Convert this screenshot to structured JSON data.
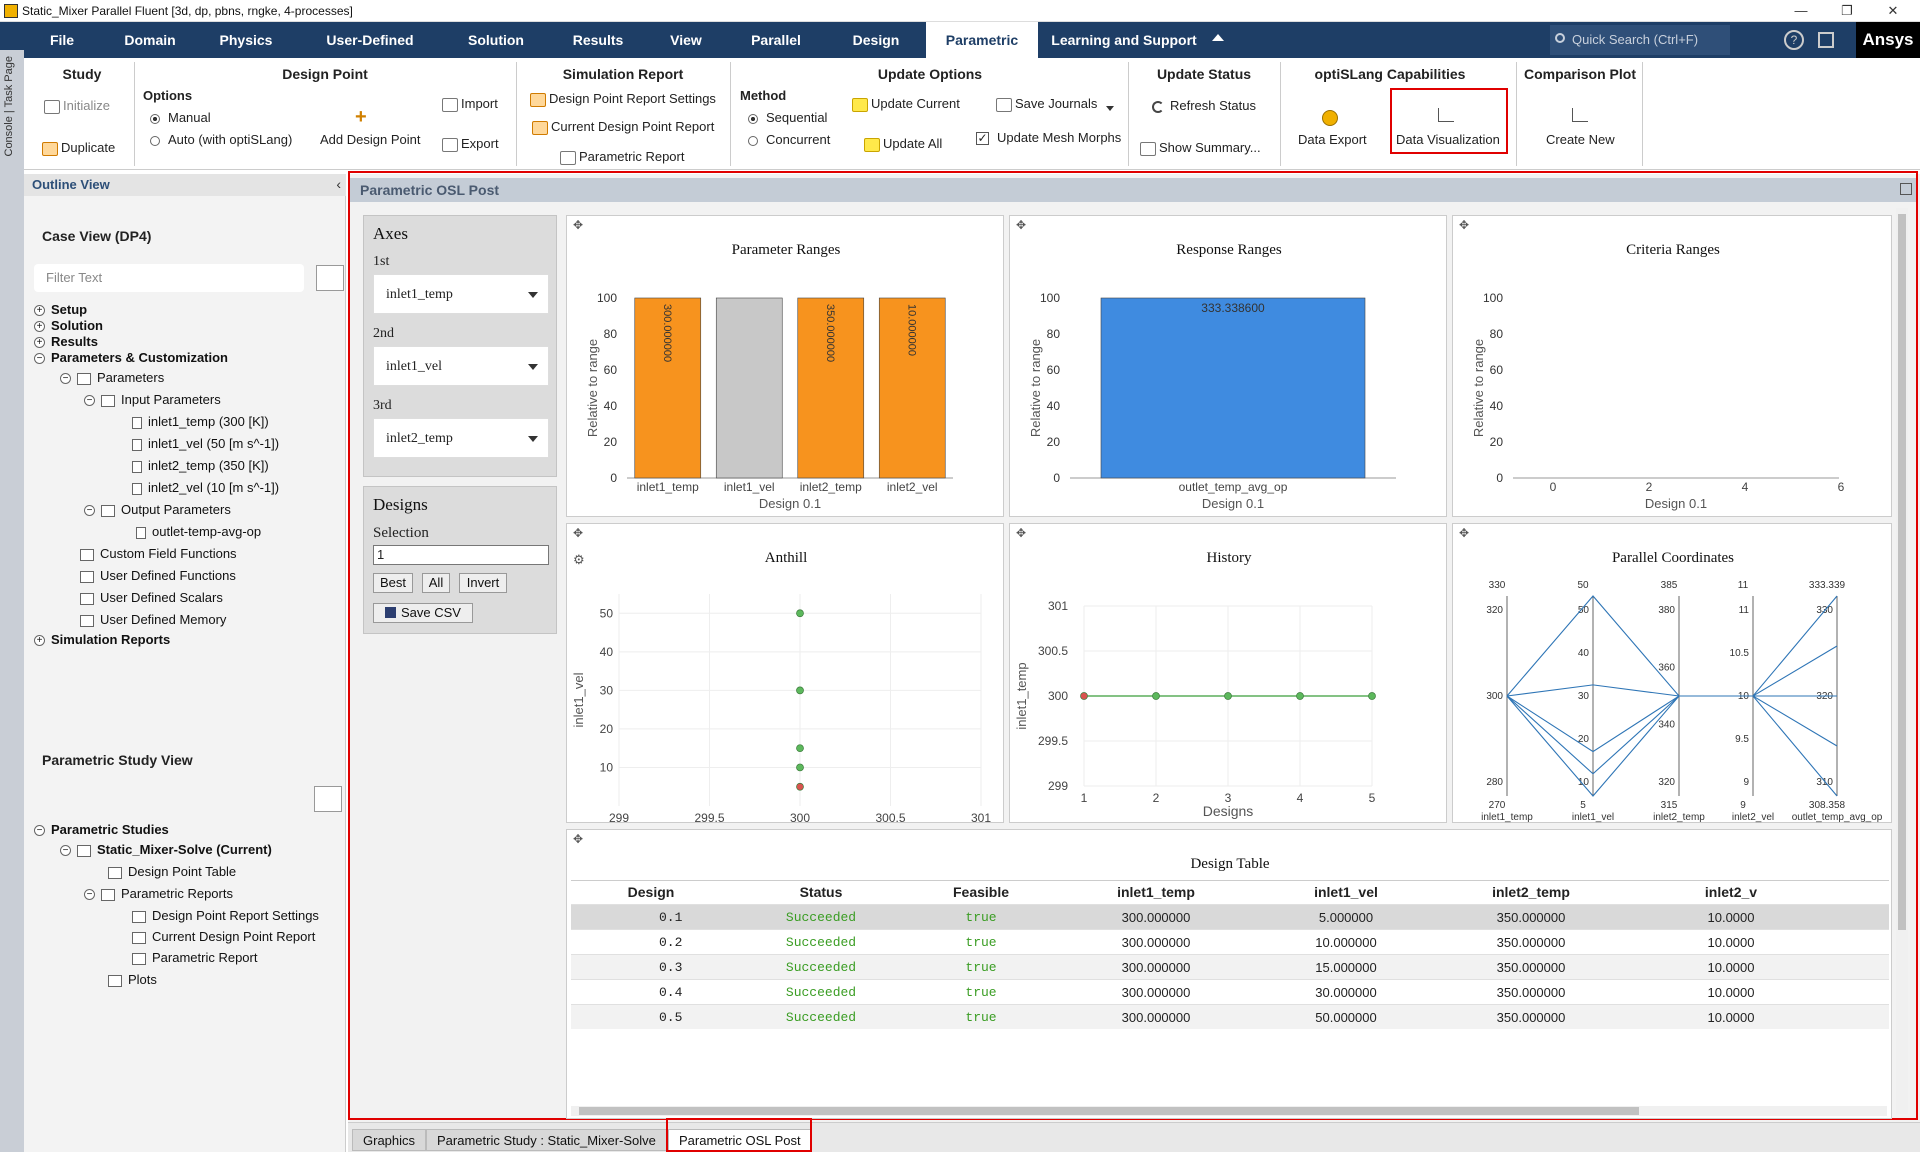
{
  "window": {
    "title": "Static_Mixer Parallel Fluent  [3d, dp, pbns, rngke, 4-processes]",
    "min": "—",
    "max": "❐",
    "close": "✕"
  },
  "menu": [
    "File",
    "Domain",
    "Physics",
    "User-Defined",
    "Solution",
    "Results",
    "View",
    "Parallel",
    "Design",
    "Parametric",
    "Learning and Support"
  ],
  "menu_active": "Parametric",
  "search_placeholder": "Quick Search (Ctrl+F)",
  "brand": "Ansys",
  "ribbon": {
    "study": {
      "title": "Study",
      "initialize": "Initialize",
      "duplicate": "Duplicate"
    },
    "design_point": {
      "title": "Design Point",
      "options": "Options",
      "manual": "Manual",
      "auto": "Auto (with optiSLang)",
      "add": "Add Design Point",
      "import": "Import",
      "export": "Export"
    },
    "sim_report": {
      "title": "Simulation Report",
      "dp_settings": "Design Point Report Settings",
      "current": "Current Design Point Report",
      "param": "Parametric Report"
    },
    "update": {
      "title": "Update Options",
      "method": "Method",
      "sequential": "Sequential",
      "concurrent": "Concurrent",
      "update_current": "Update Current",
      "update_all": "Update All",
      "save_journals": "Save Journals",
      "mesh": "Update Mesh Morphs"
    },
    "status": {
      "title": "Update Status",
      "refresh": "Refresh Status",
      "summary": "Show Summary..."
    },
    "optislang": {
      "title": "optiSLang Capabilities",
      "export": "Data Export",
      "viz": "Data Visualization"
    },
    "compare": {
      "title": "Comparison Plot",
      "create": "Create New"
    }
  },
  "left_strip": "Console | Task Page",
  "outline": {
    "title": "Outline View",
    "case": "Case View (DP4)",
    "filter": "Filter Text",
    "items": {
      "setup": "Setup",
      "solution": "Solution",
      "results": "Results",
      "pc": "Parameters & Customization",
      "params": "Parameters",
      "inparams": "Input Parameters",
      "p1": "inlet1_temp (300 [K])",
      "p2": "inlet1_vel (50 [m s^-1])",
      "p3": "inlet2_temp (350 [K])",
      "p4": "inlet2_vel (10 [m s^-1])",
      "outparams": "Output Parameters",
      "o1": "outlet-temp-avg-op",
      "cff": "Custom Field Functions",
      "udf": "User Defined Functions",
      "uds": "User Defined Scalars",
      "udm": "User Defined Memory",
      "simrep": "Simulation Reports"
    }
  },
  "study_view": {
    "title": "Parametric Study View",
    "studies": "Parametric Studies",
    "current": "Static_Mixer-Solve (Current)",
    "dpt": "Design Point Table",
    "preps": "Parametric Reports",
    "dprs": "Design Point Report Settings",
    "cdpr": "Current Design Point Report",
    "pr": "Parametric Report",
    "plots": "Plots"
  },
  "panel_title": "Parametric OSL Post",
  "axes": {
    "title": "Axes",
    "first": "1st",
    "second": "2nd",
    "third": "3rd",
    "v1": "inlet1_temp",
    "v2": "inlet1_vel",
    "v3": "inlet2_temp"
  },
  "designs": {
    "title": "Designs",
    "selection": "Selection",
    "value": "1",
    "best": "Best",
    "all": "All",
    "invert": "Invert",
    "save": "Save CSV"
  },
  "charts": {
    "param_ranges": {
      "title": "Parameter Ranges",
      "xlabel": "Design 0.1",
      "ylabel": "Relative to range",
      "categories": [
        "inlet1_temp",
        "inlet1_vel",
        "inlet2_temp",
        "inlet2_vel"
      ],
      "values": [
        100,
        100,
        100,
        100
      ],
      "labels": [
        "300.000000",
        "",
        "350.000000",
        "10.000000"
      ],
      "colors": [
        "#f7931e",
        "#c8c8c8",
        "#f7931e",
        "#f7931e"
      ],
      "yticks": [
        0,
        20,
        40,
        60,
        80,
        100
      ]
    },
    "resp_ranges": {
      "title": "Response Ranges",
      "xlabel": "Design 0.1",
      "ylabel": "Relative to range",
      "categories": [
        "outlet_temp_avg_op"
      ],
      "values": [
        100
      ],
      "labels": [
        "333.338600"
      ],
      "color": "#3f8be0",
      "yticks": [
        0,
        20,
        40,
        60,
        80,
        100
      ]
    },
    "crit_ranges": {
      "title": "Criteria Ranges",
      "xlabel": "Design 0.1",
      "ylabel": "Relative to range",
      "xticks": [
        "0",
        "2",
        "4",
        "6"
      ],
      "yticks": [
        0,
        20,
        40,
        60,
        80,
        100
      ]
    },
    "anthill": {
      "title": "Anthill",
      "xlabel": "inlet1_temp",
      "ylabel": "inlet1_vel",
      "xticks": [
        "299",
        "299.5",
        "300",
        "300.5",
        "301"
      ],
      "yticks": [
        "10",
        "20",
        "30",
        "40",
        "50"
      ],
      "points": [
        {
          "x": 300,
          "y": 5,
          "best": true
        },
        {
          "x": 300,
          "y": 10
        },
        {
          "x": 300,
          "y": 15
        },
        {
          "x": 300,
          "y": 30
        },
        {
          "x": 300,
          "y": 50
        }
      ]
    },
    "history": {
      "title": "History",
      "xlabel": "Designs",
      "ylabel": "inlet1_temp",
      "xticks": [
        "1",
        "2",
        "3",
        "4",
        "5"
      ],
      "yticks": [
        "299",
        "299.5",
        "300",
        "300.5",
        "301"
      ],
      "values": [
        300,
        300,
        300,
        300,
        300
      ]
    },
    "parcoord": {
      "title": "Parallel Coordinates",
      "axes": [
        {
          "name": "inlet1_temp",
          "top": "330",
          "bottom": "270",
          "ticks": [
            "320",
            "300",
            "280"
          ]
        },
        {
          "name": "inlet1_vel",
          "top": "50",
          "bottom": "5",
          "ticks": [
            "50",
            "40",
            "30",
            "20",
            "10"
          ]
        },
        {
          "name": "inlet2_temp",
          "top": "385",
          "bottom": "315",
          "ticks": [
            "380",
            "360",
            "340",
            "320"
          ]
        },
        {
          "name": "inlet2_vel",
          "top": "11",
          "bottom": "9",
          "ticks": [
            "11",
            "10.5",
            "10",
            "9.5",
            "9"
          ]
        },
        {
          "name": "outlet_temp_avg_op",
          "top": "333.339",
          "bottom": "308.358",
          "ticks": [
            "330",
            "320",
            "310"
          ]
        }
      ]
    }
  },
  "table": {
    "title": "Design Table",
    "headers": [
      "Design",
      "Status",
      "Feasible",
      "inlet1_temp",
      "inlet1_vel",
      "inlet2_temp",
      "inlet2_v"
    ],
    "rows": [
      [
        "0.1",
        "Succeeded",
        "true",
        "300.000000",
        "5.000000",
        "350.000000",
        "10.0000"
      ],
      [
        "0.2",
        "Succeeded",
        "true",
        "300.000000",
        "10.000000",
        "350.000000",
        "10.0000"
      ],
      [
        "0.3",
        "Succeeded",
        "true",
        "300.000000",
        "15.000000",
        "350.000000",
        "10.0000"
      ],
      [
        "0.4",
        "Succeeded",
        "true",
        "300.000000",
        "30.000000",
        "350.000000",
        "10.0000"
      ],
      [
        "0.5",
        "Succeeded",
        "true",
        "300.000000",
        "50.000000",
        "350.000000",
        "10.0000"
      ]
    ]
  },
  "bottom_tabs": [
    "Graphics",
    "Parametric Study : Static_Mixer-Solve",
    "Parametric OSL Post"
  ],
  "colors": {
    "accent": "#1e3e66",
    "highlight": "#e00000",
    "orange": "#f7931e",
    "blue": "#3f8be0",
    "line": "#2e75b6",
    "green": "#5cb85c",
    "red": "#d9534f",
    "success": "#3a9d23"
  }
}
